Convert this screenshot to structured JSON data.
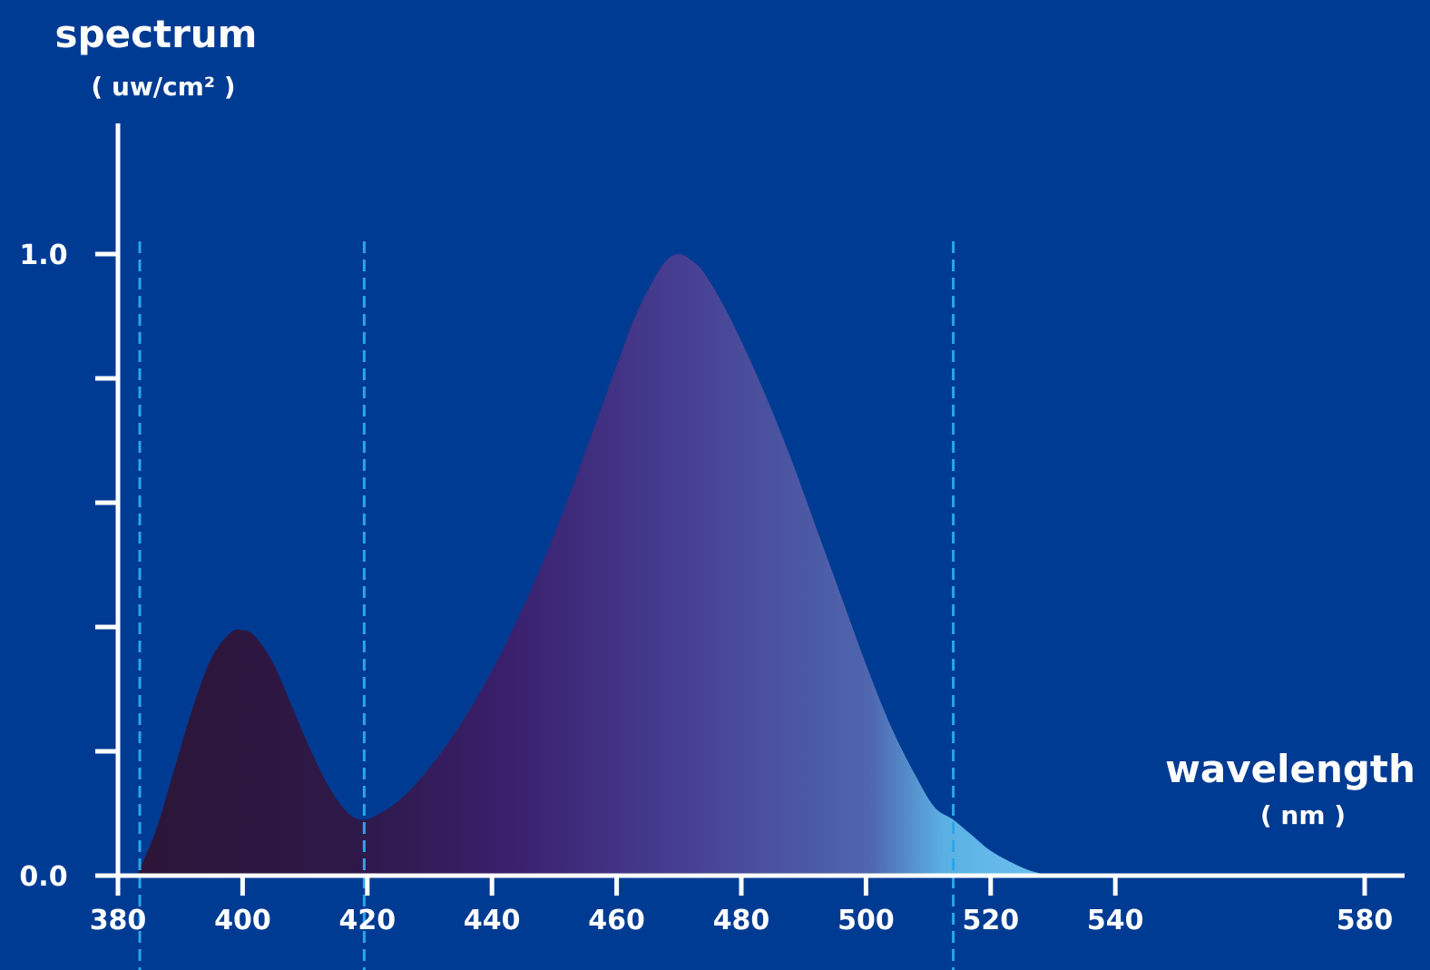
{
  "chart_data": {
    "type": "area",
    "ylabel": "spectrum",
    "ylabel_unit": "( uw/cm² )",
    "xlabel": "wavelength",
    "xlabel_unit": "( nm )",
    "xlim": [
      380,
      600
    ],
    "ylim": [
      0,
      1.0
    ],
    "x_ticks": [
      380,
      400,
      420,
      440,
      460,
      480,
      500,
      520,
      540,
      580
    ],
    "x_tick_labels": [
      "380",
      "400",
      "420",
      "440",
      "460",
      "480",
      "500",
      "520",
      "540",
      "580"
    ],
    "y_ticks": [
      0,
      0.2,
      0.4,
      0.6,
      0.8,
      1.0
    ],
    "y_tick_labels": [
      "0.0",
      "",
      "",
      "",
      "",
      "1.0"
    ],
    "reference_lines_x": [
      383.5,
      419.5,
      514
    ],
    "series": [
      {
        "x": [
          383,
          386,
          389,
          392,
          395,
          398,
          400,
          402,
          405,
          408,
          411,
          414,
          417,
          419.5,
          422,
          425,
          428,
          432,
          436,
          440,
          444,
          448,
          452,
          456,
          460,
          463,
          466,
          468,
          470,
          472,
          474,
          477,
          480,
          484,
          488,
          492,
          496,
          500,
          504,
          508,
          511,
          514,
          517,
          520,
          524,
          527,
          530
        ],
        "y": [
          0.0,
          0.07,
          0.17,
          0.27,
          0.35,
          0.39,
          0.395,
          0.385,
          0.34,
          0.27,
          0.2,
          0.14,
          0.1,
          0.09,
          0.1,
          0.12,
          0.15,
          0.2,
          0.26,
          0.33,
          0.41,
          0.5,
          0.6,
          0.71,
          0.82,
          0.9,
          0.96,
          0.99,
          1.0,
          0.99,
          0.97,
          0.92,
          0.86,
          0.77,
          0.67,
          0.56,
          0.45,
          0.34,
          0.24,
          0.16,
          0.11,
          0.09,
          0.065,
          0.04,
          0.018,
          0.006,
          0.0
        ]
      }
    ],
    "colors": {
      "background": "#003b93",
      "axis": "#ffffff",
      "reference_line": "#2aa6e8",
      "gradient": [
        "#2c1538",
        "#2e1848",
        "#3a1f6c",
        "#463c90",
        "#4f66ae",
        "#5bb0e4",
        "#6cc2ef"
      ]
    }
  }
}
